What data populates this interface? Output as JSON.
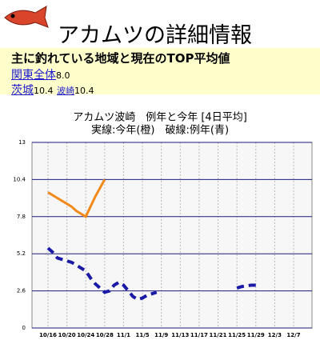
{
  "header": {
    "title": "アカムツの詳細情報"
  },
  "region": {
    "heading": "主に釣れている地域と現在のTOP平均値",
    "items": [
      {
        "name": "関東全体",
        "value": "8.0"
      },
      {
        "name": "茨城",
        "value": "10.4"
      },
      {
        "name": "波崎",
        "value": "10.4"
      }
    ]
  },
  "chart_data": {
    "type": "line",
    "title": "アカムツ波崎　例年と今年 [4日平均]",
    "subtitle": "実線:今年(橙)　破線:例年(青)",
    "categories": [
      "10/16",
      null,
      null,
      null,
      "10/20",
      null,
      null,
      null,
      "10/24",
      null,
      null,
      null,
      "10/28",
      null,
      null,
      null,
      "11/1",
      null,
      null,
      null,
      "11/5",
      null,
      null,
      null,
      "11/9",
      null,
      null,
      null,
      "11/13",
      null,
      null,
      null,
      "11/17",
      null,
      null,
      null,
      "11/21",
      null,
      null,
      null,
      "11/25",
      null,
      null,
      null,
      "11/29",
      null,
      null,
      null,
      "12/3",
      null,
      null,
      null,
      "12/7"
    ],
    "series": [
      {
        "name": "今年",
        "color": "#f28a1a",
        "dash": false,
        "values": [
          9.5,
          9.3,
          9.1,
          8.9,
          8.7,
          8.5,
          8.2,
          8.0,
          7.8,
          8.5,
          9.2,
          9.8,
          10.4,
          null,
          null,
          null,
          null,
          null,
          null,
          null,
          null,
          null,
          null,
          null,
          null,
          null,
          null,
          null,
          null,
          null,
          null,
          null,
          null,
          null,
          null,
          null,
          null,
          null,
          null,
          null,
          null,
          null,
          null,
          null,
          null,
          null,
          null,
          null,
          null,
          null,
          null,
          null,
          null
        ]
      },
      {
        "name": "例年",
        "color": "#1a1aa6",
        "dash": true,
        "values": [
          5.6,
          5.3,
          4.9,
          4.8,
          4.7,
          4.6,
          4.4,
          4.2,
          4.0,
          3.5,
          3.1,
          2.8,
          2.5,
          2.6,
          3.0,
          3.2,
          3.0,
          2.6,
          2.2,
          2.0,
          2.1,
          2.3,
          2.4,
          2.5,
          null,
          null,
          null,
          null,
          null,
          null,
          null,
          null,
          null,
          null,
          null,
          null,
          null,
          null,
          null,
          null,
          2.8,
          2.9,
          2.95,
          3.0,
          3.0,
          null,
          null,
          null,
          null,
          null,
          null,
          null,
          null
        ]
      }
    ],
    "ylim": [
      0,
      13
    ],
    "yticks": [
      0,
      2.6,
      5.2,
      7.8,
      10.4,
      13
    ],
    "grid": true
  }
}
